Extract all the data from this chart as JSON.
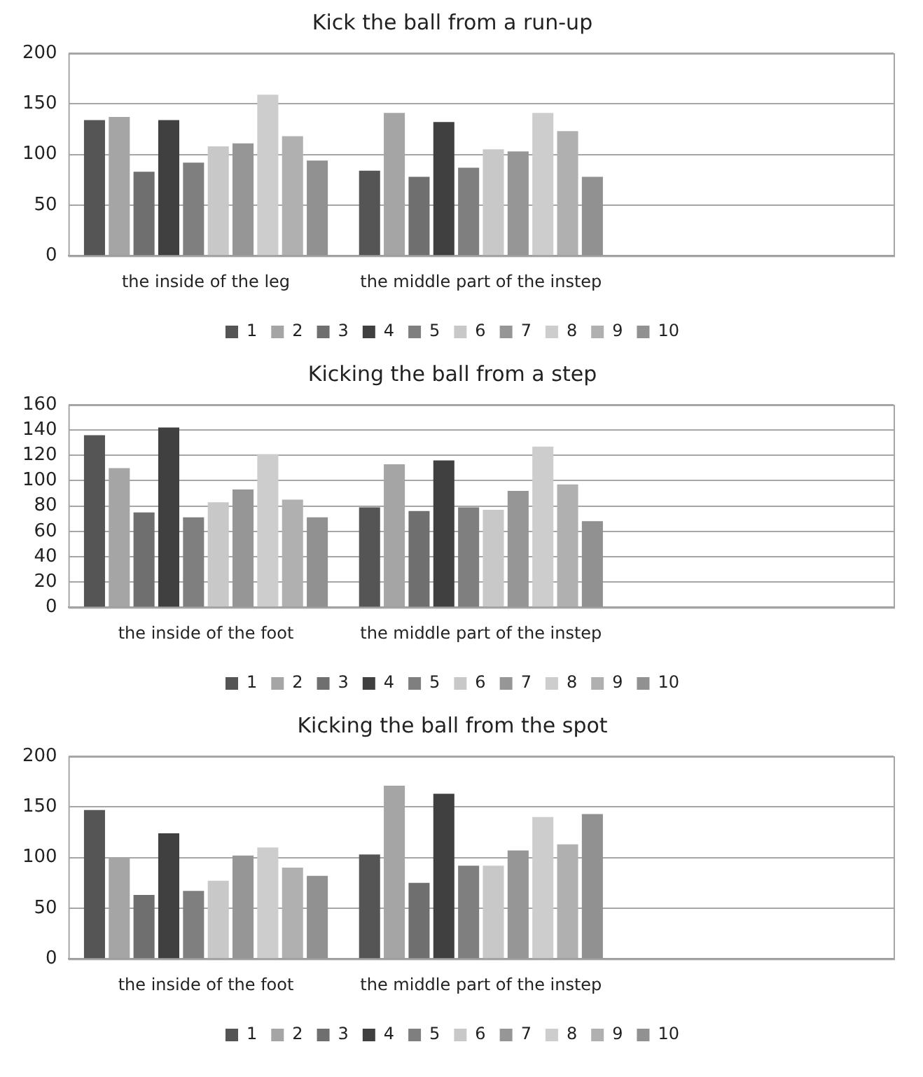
{
  "chart_data": [
    {
      "type": "bar",
      "title": "Kick the ball from a run-up",
      "categories": [
        "the inside of the leg",
        "the middle part of the instep",
        null
      ],
      "ylim": [
        0,
        200
      ],
      "yticks": [
        0,
        50,
        100,
        150,
        200
      ],
      "grid": "y",
      "legend": "bottom",
      "series": [
        {
          "name": "1",
          "color": "#555555",
          "values": [
            134,
            84,
            null
          ]
        },
        {
          "name": "2",
          "color": "#a5a5a5",
          "values": [
            137,
            141,
            null
          ]
        },
        {
          "name": "3",
          "color": "#6f6f6f",
          "values": [
            83,
            78,
            null
          ]
        },
        {
          "name": "4",
          "color": "#404040",
          "values": [
            134,
            132,
            null
          ]
        },
        {
          "name": "5",
          "color": "#7f7f7f",
          "values": [
            92,
            87,
            null
          ]
        },
        {
          "name": "6",
          "color": "#c8c8c8",
          "values": [
            108,
            105,
            null
          ]
        },
        {
          "name": "7",
          "color": "#969696",
          "values": [
            111,
            103,
            null
          ]
        },
        {
          "name": "8",
          "color": "#cdcdcd",
          "values": [
            159,
            141,
            null
          ]
        },
        {
          "name": "9",
          "color": "#b0b0b0",
          "values": [
            118,
            123,
            null
          ]
        },
        {
          "name": "10",
          "color": "#919191",
          "values": [
            94,
            78,
            null
          ]
        }
      ]
    },
    {
      "type": "bar",
      "title": "Kicking the ball from a step",
      "categories": [
        "the inside of the foot",
        "the middle part of the instep",
        null
      ],
      "ylim": [
        0,
        160
      ],
      "yticks": [
        0,
        20,
        40,
        60,
        80,
        100,
        120,
        140,
        160
      ],
      "grid": "y",
      "legend": "bottom",
      "series": [
        {
          "name": "1",
          "color": "#555555",
          "values": [
            136,
            79,
            null
          ]
        },
        {
          "name": "2",
          "color": "#a5a5a5",
          "values": [
            110,
            113,
            null
          ]
        },
        {
          "name": "3",
          "color": "#6f6f6f",
          "values": [
            75,
            76,
            null
          ]
        },
        {
          "name": "4",
          "color": "#404040",
          "values": [
            142,
            116,
            null
          ]
        },
        {
          "name": "5",
          "color": "#7f7f7f",
          "values": [
            71,
            79,
            null
          ]
        },
        {
          "name": "6",
          "color": "#c8c8c8",
          "values": [
            83,
            77,
            null
          ]
        },
        {
          "name": "7",
          "color": "#969696",
          "values": [
            93,
            92,
            null
          ]
        },
        {
          "name": "8",
          "color": "#cdcdcd",
          "values": [
            121,
            127,
            null
          ]
        },
        {
          "name": "9",
          "color": "#b0b0b0",
          "values": [
            85,
            97,
            null
          ]
        },
        {
          "name": "10",
          "color": "#919191",
          "values": [
            71,
            68,
            null
          ]
        }
      ]
    },
    {
      "type": "bar",
      "title": "Kicking the ball from the spot",
      "categories": [
        "the inside of the foot",
        "the middle part of the instep",
        null
      ],
      "ylim": [
        0,
        200
      ],
      "yticks": [
        0,
        50,
        100,
        150,
        200
      ],
      "grid": "y",
      "legend": "bottom",
      "series": [
        {
          "name": "1",
          "color": "#555555",
          "values": [
            147,
            103,
            null
          ]
        },
        {
          "name": "2",
          "color": "#a5a5a5",
          "values": [
            100,
            171,
            null
          ]
        },
        {
          "name": "3",
          "color": "#6f6f6f",
          "values": [
            63,
            75,
            null
          ]
        },
        {
          "name": "4",
          "color": "#404040",
          "values": [
            124,
            163,
            null
          ]
        },
        {
          "name": "5",
          "color": "#7f7f7f",
          "values": [
            67,
            92,
            null
          ]
        },
        {
          "name": "6",
          "color": "#c8c8c8",
          "values": [
            77,
            92,
            null
          ]
        },
        {
          "name": "7",
          "color": "#969696",
          "values": [
            102,
            107,
            null
          ]
        },
        {
          "name": "8",
          "color": "#cdcdcd",
          "values": [
            110,
            140,
            null
          ]
        },
        {
          "name": "9",
          "color": "#b0b0b0",
          "values": [
            90,
            113,
            null
          ]
        },
        {
          "name": "10",
          "color": "#919191",
          "values": [
            82,
            143,
            null
          ]
        }
      ]
    }
  ]
}
